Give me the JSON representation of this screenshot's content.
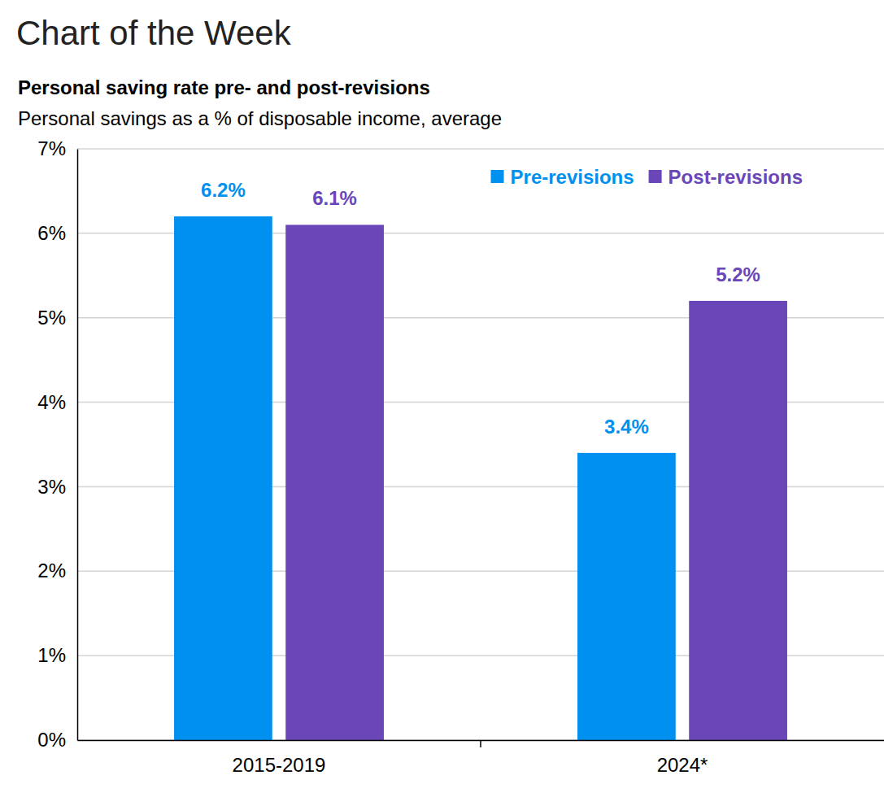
{
  "header": "Chart of the Week",
  "chart_data": {
    "type": "bar",
    "title": "Personal saving rate pre- and post-revisions",
    "subtitle": "Personal savings as a % of disposable income, average",
    "categories": [
      "2015-2019",
      "2024*"
    ],
    "series": [
      {
        "name": "Pre-revisions",
        "color": "#0091f0",
        "values": [
          6.2,
          3.4
        ],
        "value_labels": [
          "6.2%",
          "3.4%"
        ]
      },
      {
        "name": "Post-revisions",
        "color": "#6b46b8",
        "values": [
          6.1,
          5.2
        ],
        "value_labels": [
          "6.1%",
          "5.2%"
        ]
      }
    ],
    "ylim": [
      0,
      7
    ],
    "yticks": [
      {
        "value": 0,
        "label": "0%"
      },
      {
        "value": 1,
        "label": "1%"
      },
      {
        "value": 2,
        "label": "2%"
      },
      {
        "value": 3,
        "label": "3%"
      },
      {
        "value": 4,
        "label": "4%"
      },
      {
        "value": 5,
        "label": "5%"
      },
      {
        "value": 6,
        "label": "6%"
      },
      {
        "value": 7,
        "label": "7%"
      }
    ],
    "grid": true,
    "legend": "top-right",
    "data_labels": true
  }
}
